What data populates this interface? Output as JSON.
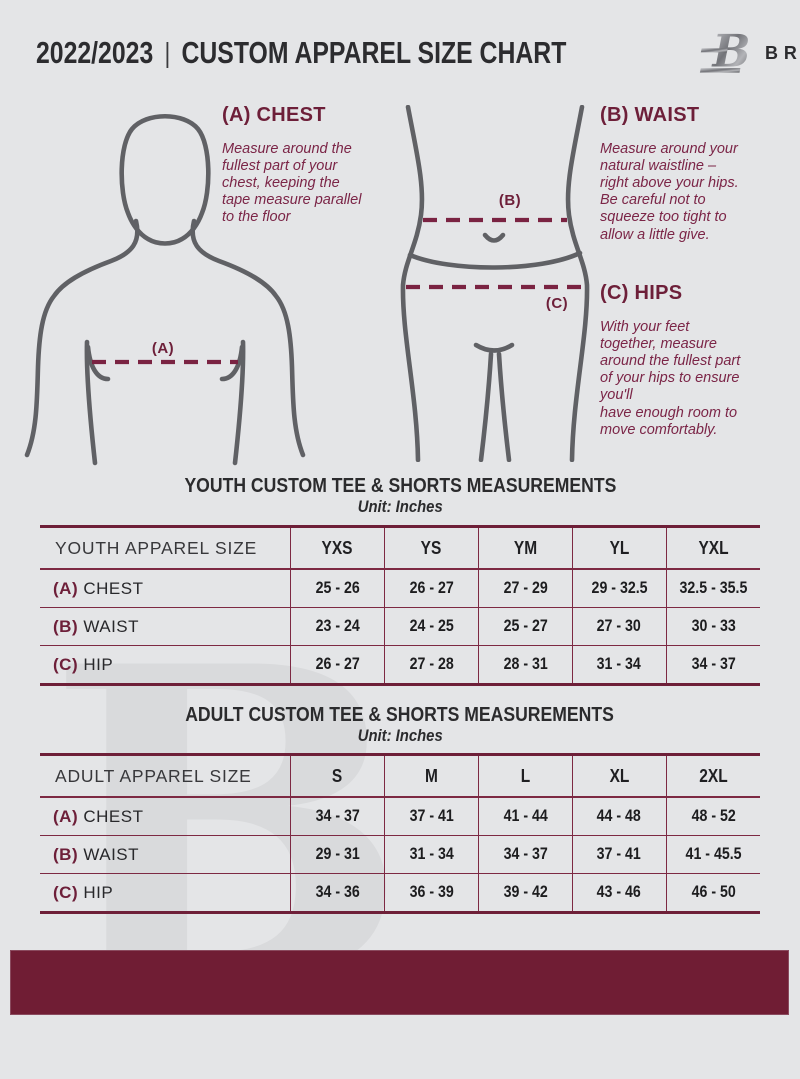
{
  "header": {
    "year": "2022/2023",
    "divider": "|",
    "title": "CUSTOM APPAREL SIZE CHART",
    "brand": "BREAKAWAY",
    "logo_icon": "breakaway-b-logo"
  },
  "colors": {
    "maroon_heading": "#6d1f39",
    "maroon_body_text": "#7b2547",
    "table_border": "#7d2943",
    "footer_bar": "#701d34",
    "background": "#e4e5e7",
    "figure_outline": "#606165",
    "watermark": "#d9dadc"
  },
  "watermark_letter": "B",
  "instructions": [
    {
      "heading": "(A) CHEST",
      "marker_label": "(A)",
      "text": "Measure around the\nfullest part of your\nchest, keeping the\ntape measure parallel\nto the floor"
    },
    {
      "heading": "(B) WAIST",
      "marker_label": "(B)",
      "text": "Measure around your\nnatural waistline –\nright above your hips.\nBe careful not to\nsqueeze too tight to\nallow a little give."
    },
    {
      "heading": "(C) HIPS",
      "marker_label": "(C)",
      "text": "With your feet\ntogether, measure\naround the fullest part\nof your hips to ensure\nyou'll\nhave enough room to\nmove comfortably."
    }
  ],
  "tables": [
    {
      "title": "YOUTH CUSTOM TEE & SHORTS MEASUREMENTS",
      "unit": "Unit: Inches",
      "size_label": "YOUTH APPAREL SIZE",
      "columns": [
        "YXS",
        "YS",
        "YM",
        "YL",
        "YXL"
      ],
      "rows": [
        {
          "marker": "(A)",
          "label": "CHEST",
          "values": [
            "25 - 26",
            "26 - 27",
            "27 - 29",
            "29 - 32.5",
            "32.5 - 35.5"
          ]
        },
        {
          "marker": "(B)",
          "label": "WAIST",
          "values": [
            "23 - 24",
            "24 - 25",
            "25 - 27",
            "27 - 30",
            "30 - 33"
          ]
        },
        {
          "marker": "(C)",
          "label": "HIP",
          "values": [
            "26 - 27",
            "27 - 28",
            "28 - 31",
            "31 - 34",
            "34 - 37"
          ]
        }
      ]
    },
    {
      "title": "ADULT CUSTOM TEE & SHORTS MEASUREMENTS",
      "unit": "Unit: Inches",
      "size_label": "ADULT APPAREL SIZE",
      "columns": [
        "S",
        "M",
        "L",
        "XL",
        "2XL"
      ],
      "rows": [
        {
          "marker": "(A)",
          "label": "CHEST",
          "values": [
            "34 - 37",
            "37 - 41",
            "41 - 44",
            "44 - 48",
            "48 - 52"
          ]
        },
        {
          "marker": "(B)",
          "label": "WAIST",
          "values": [
            "29 - 31",
            "31 - 34",
            "34 - 37",
            "37 - 41",
            "41 - 45.5"
          ]
        },
        {
          "marker": "(C)",
          "label": "HIP",
          "values": [
            "34 - 36",
            "36 - 39",
            "39 - 42",
            "43 - 46",
            "46 - 50"
          ]
        }
      ]
    }
  ]
}
